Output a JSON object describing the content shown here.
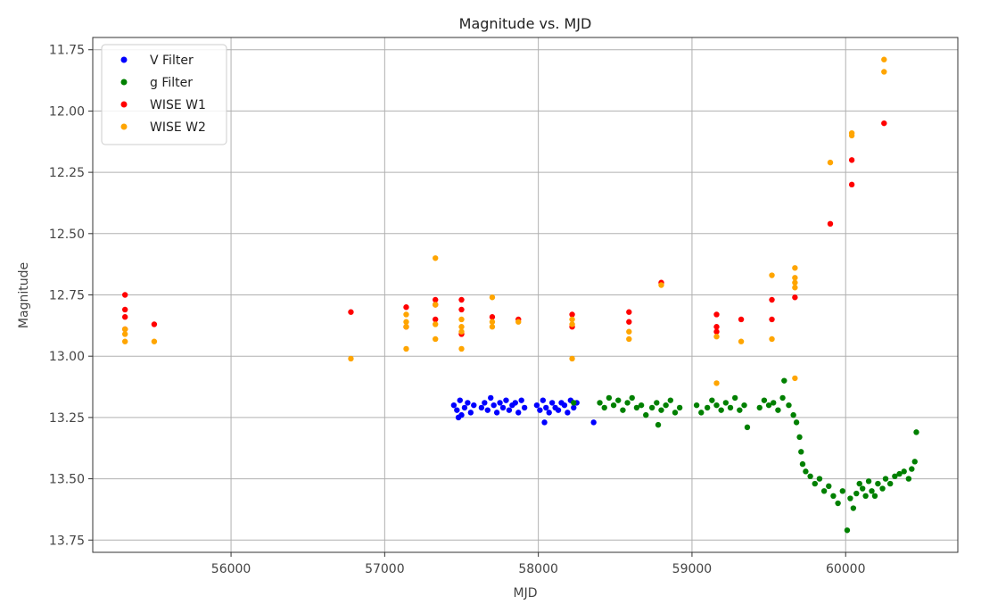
{
  "chart_data": {
    "type": "scatter",
    "title": "Magnitude vs. MJD",
    "xlabel": "MJD",
    "ylabel": "Magnitude",
    "xlim": [
      55100,
      60730
    ],
    "ylim": [
      13.8,
      11.7
    ],
    "y_inverted": true,
    "grid": true,
    "legend_position": "top-left",
    "x_ticks": [
      56000,
      57000,
      58000,
      59000,
      60000
    ],
    "x_tick_labels": [
      "56000",
      "57000",
      "58000",
      "59000",
      "60000"
    ],
    "y_ticks": [
      11.75,
      12.0,
      12.25,
      12.5,
      12.75,
      13.0,
      13.25,
      13.5,
      13.75
    ],
    "y_tick_labels": [
      "11.75",
      "12.00",
      "12.25",
      "12.50",
      "12.75",
      "13.00",
      "13.25",
      "13.50",
      "13.75"
    ],
    "series": [
      {
        "name": "V Filter",
        "color": "#0000ff",
        "points": [
          [
            57450,
            13.2
          ],
          [
            57470,
            13.22
          ],
          [
            57490,
            13.18
          ],
          [
            57500,
            13.24
          ],
          [
            57520,
            13.21
          ],
          [
            57540,
            13.19
          ],
          [
            57560,
            13.23
          ],
          [
            57580,
            13.2
          ],
          [
            57630,
            13.21
          ],
          [
            57650,
            13.19
          ],
          [
            57670,
            13.22
          ],
          [
            57690,
            13.17
          ],
          [
            57710,
            13.2
          ],
          [
            57730,
            13.23
          ],
          [
            57750,
            13.19
          ],
          [
            57770,
            13.21
          ],
          [
            57790,
            13.18
          ],
          [
            57810,
            13.22
          ],
          [
            57830,
            13.2
          ],
          [
            57850,
            13.19
          ],
          [
            57870,
            13.23
          ],
          [
            57890,
            13.18
          ],
          [
            57910,
            13.21
          ],
          [
            57990,
            13.2
          ],
          [
            58010,
            13.22
          ],
          [
            58030,
            13.18
          ],
          [
            58050,
            13.21
          ],
          [
            58070,
            13.23
          ],
          [
            58090,
            13.19
          ],
          [
            58110,
            13.21
          ],
          [
            58130,
            13.22
          ],
          [
            58150,
            13.19
          ],
          [
            58170,
            13.2
          ],
          [
            58190,
            13.23
          ],
          [
            58210,
            13.18
          ],
          [
            58230,
            13.21
          ],
          [
            58250,
            13.19
          ],
          [
            57480,
            13.25
          ],
          [
            58360,
            13.27
          ],
          [
            58040,
            13.27
          ]
        ]
      },
      {
        "name": "g Filter",
        "color": "#008000",
        "points": [
          [
            58230,
            13.19
          ],
          [
            58400,
            13.19
          ],
          [
            58430,
            13.21
          ],
          [
            58460,
            13.17
          ],
          [
            58490,
            13.2
          ],
          [
            58520,
            13.18
          ],
          [
            58550,
            13.22
          ],
          [
            58580,
            13.19
          ],
          [
            58610,
            13.17
          ],
          [
            58640,
            13.21
          ],
          [
            58670,
            13.2
          ],
          [
            58700,
            13.24
          ],
          [
            58740,
            13.21
          ],
          [
            58770,
            13.19
          ],
          [
            58800,
            13.22
          ],
          [
            58830,
            13.2
          ],
          [
            58860,
            13.18
          ],
          [
            58890,
            13.23
          ],
          [
            58920,
            13.21
          ],
          [
            58780,
            13.28
          ],
          [
            59030,
            13.2
          ],
          [
            59060,
            13.23
          ],
          [
            59100,
            13.21
          ],
          [
            59130,
            13.18
          ],
          [
            59160,
            13.2
          ],
          [
            59190,
            13.22
          ],
          [
            59220,
            13.19
          ],
          [
            59250,
            13.21
          ],
          [
            59280,
            13.17
          ],
          [
            59310,
            13.22
          ],
          [
            59340,
            13.2
          ],
          [
            59360,
            13.29
          ],
          [
            59440,
            13.21
          ],
          [
            59470,
            13.18
          ],
          [
            59500,
            13.2
          ],
          [
            59530,
            13.19
          ],
          [
            59560,
            13.22
          ],
          [
            59590,
            13.17
          ],
          [
            59600,
            13.1
          ],
          [
            59630,
            13.2
          ],
          [
            59660,
            13.24
          ],
          [
            59680,
            13.27
          ],
          [
            59700,
            13.33
          ],
          [
            59710,
            13.39
          ],
          [
            59720,
            13.44
          ],
          [
            59740,
            13.47
          ],
          [
            59770,
            13.49
          ],
          [
            59800,
            13.52
          ],
          [
            59830,
            13.5
          ],
          [
            59860,
            13.55
          ],
          [
            59890,
            13.53
          ],
          [
            59920,
            13.57
          ],
          [
            59950,
            13.6
          ],
          [
            59980,
            13.55
          ],
          [
            60010,
            13.71
          ],
          [
            60030,
            13.58
          ],
          [
            60050,
            13.62
          ],
          [
            60070,
            13.56
          ],
          [
            60090,
            13.52
          ],
          [
            60110,
            13.54
          ],
          [
            60130,
            13.57
          ],
          [
            60150,
            13.51
          ],
          [
            60170,
            13.55
          ],
          [
            60190,
            13.57
          ],
          [
            60210,
            13.52
          ],
          [
            60240,
            13.54
          ],
          [
            60260,
            13.5
          ],
          [
            60290,
            13.52
          ],
          [
            60320,
            13.49
          ],
          [
            60350,
            13.48
          ],
          [
            60380,
            13.47
          ],
          [
            60410,
            13.5
          ],
          [
            60430,
            13.46
          ],
          [
            60450,
            13.43
          ],
          [
            60460,
            13.31
          ]
        ]
      },
      {
        "name": "WISE W1",
        "color": "#ff0000",
        "points": [
          [
            55310,
            12.75
          ],
          [
            55310,
            12.81
          ],
          [
            55310,
            12.84
          ],
          [
            55310,
            12.89
          ],
          [
            55500,
            12.87
          ],
          [
            56780,
            12.82
          ],
          [
            57140,
            12.8
          ],
          [
            57140,
            12.88
          ],
          [
            57330,
            12.77
          ],
          [
            57330,
            12.79
          ],
          [
            57330,
            12.85
          ],
          [
            57500,
            12.77
          ],
          [
            57500,
            12.81
          ],
          [
            57500,
            12.91
          ],
          [
            57700,
            12.84
          ],
          [
            57870,
            12.85
          ],
          [
            58220,
            12.83
          ],
          [
            58220,
            12.88
          ],
          [
            58590,
            12.82
          ],
          [
            58590,
            12.86
          ],
          [
            58800,
            12.7
          ],
          [
            59160,
            12.83
          ],
          [
            59160,
            12.88
          ],
          [
            59160,
            12.9
          ],
          [
            59320,
            12.85
          ],
          [
            59520,
            12.77
          ],
          [
            59520,
            12.85
          ],
          [
            59670,
            12.76
          ],
          [
            59900,
            12.46
          ],
          [
            60040,
            12.2
          ],
          [
            60040,
            12.3
          ],
          [
            60250,
            12.05
          ]
        ]
      },
      {
        "name": "WISE W2",
        "color": "#ffa500",
        "points": [
          [
            55310,
            12.89
          ],
          [
            55310,
            12.91
          ],
          [
            55310,
            12.94
          ],
          [
            55500,
            12.94
          ],
          [
            56780,
            13.01
          ],
          [
            57140,
            12.83
          ],
          [
            57140,
            12.86
          ],
          [
            57140,
            12.88
          ],
          [
            57140,
            12.97
          ],
          [
            57330,
            12.6
          ],
          [
            57330,
            12.79
          ],
          [
            57330,
            12.87
          ],
          [
            57330,
            12.93
          ],
          [
            57500,
            12.85
          ],
          [
            57500,
            12.88
          ],
          [
            57500,
            12.9
          ],
          [
            57500,
            12.97
          ],
          [
            57700,
            12.76
          ],
          [
            57700,
            12.86
          ],
          [
            57700,
            12.88
          ],
          [
            57870,
            12.86
          ],
          [
            58220,
            12.85
          ],
          [
            58220,
            12.87
          ],
          [
            58220,
            13.01
          ],
          [
            58590,
            12.9
          ],
          [
            58590,
            12.93
          ],
          [
            58800,
            12.71
          ],
          [
            59160,
            12.92
          ],
          [
            59160,
            13.11
          ],
          [
            59320,
            12.94
          ],
          [
            59520,
            12.67
          ],
          [
            59520,
            12.93
          ],
          [
            59670,
            12.64
          ],
          [
            59670,
            12.68
          ],
          [
            59670,
            12.7
          ],
          [
            59670,
            12.72
          ],
          [
            59670,
            13.09
          ],
          [
            59900,
            12.21
          ],
          [
            60040,
            12.09
          ],
          [
            60040,
            12.1
          ],
          [
            60250,
            11.79
          ],
          [
            60250,
            11.84
          ]
        ]
      }
    ]
  }
}
